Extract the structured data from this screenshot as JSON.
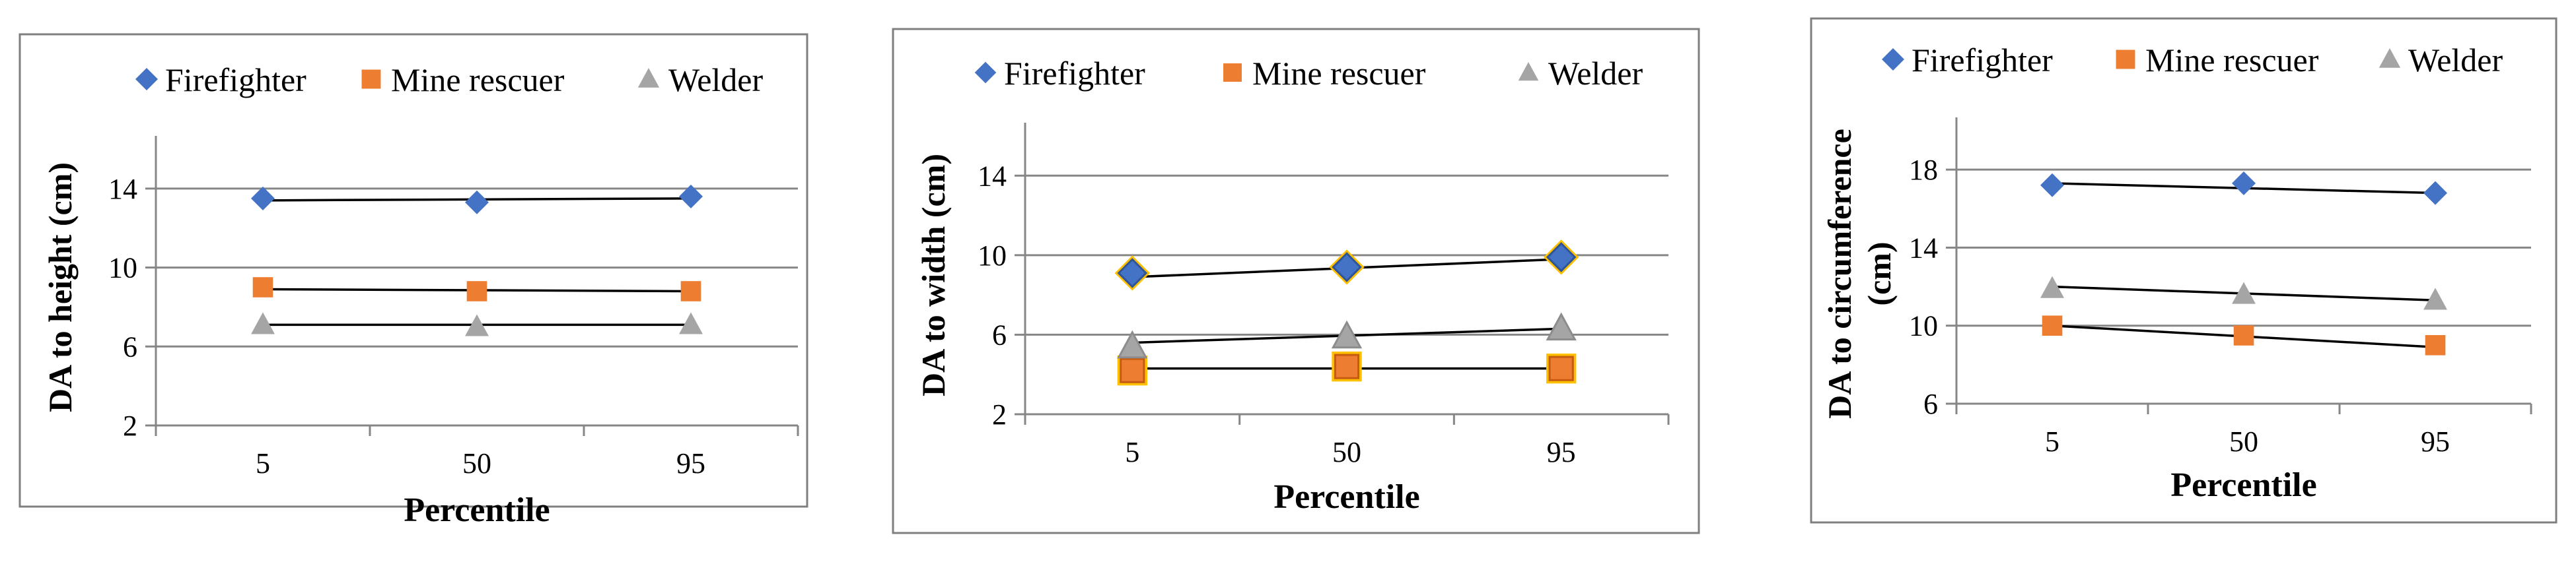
{
  "colors": {
    "firefighter": "#4472C4",
    "mine_rescuer": "#ED7D31",
    "welder": "#A5A5A5",
    "frame": "#7F7F7F",
    "grid": "#868686",
    "trend": "#000000",
    "halo": "#FFC000"
  },
  "icons": [
    "diamond-marker",
    "square-marker",
    "triangle-marker"
  ],
  "chart_data": [
    {
      "type": "scatter",
      "title": "",
      "xlabel": "Percentile",
      "ylabel": "DA to height (cm)",
      "categories": [
        "5",
        "50",
        "95"
      ],
      "yticks": [
        "2",
        "6",
        "10",
        "14"
      ],
      "ylim": [
        2,
        16
      ],
      "grid": true,
      "legend_position": "top",
      "series": [
        {
          "name": "Firefighter",
          "marker": "diamond",
          "values": [
            13.5,
            13.3,
            13.6
          ],
          "trend": [
            13.4,
            13.5
          ]
        },
        {
          "name": "Mine rescuer",
          "marker": "square",
          "values": [
            9.0,
            8.8,
            8.8
          ],
          "trend": [
            8.9,
            8.8
          ]
        },
        {
          "name": "Welder",
          "marker": "triangle",
          "values": [
            7.1,
            7.0,
            7.1
          ],
          "trend": [
            7.1,
            7.1
          ]
        }
      ]
    },
    {
      "type": "scatter",
      "title": "",
      "xlabel": "Percentile",
      "ylabel": "DA to width (cm)",
      "categories": [
        "5",
        "50",
        "95"
      ],
      "yticks": [
        "2",
        "6",
        "10",
        "14"
      ],
      "ylim": [
        2,
        16
      ],
      "grid": true,
      "legend_position": "top",
      "series": [
        {
          "name": "Firefighter",
          "marker": "diamond",
          "values": [
            9.1,
            9.4,
            9.9
          ],
          "trend": [
            8.9,
            9.8
          ]
        },
        {
          "name": "Mine rescuer",
          "marker": "square",
          "values": [
            4.2,
            4.4,
            4.3
          ],
          "trend": [
            4.3,
            4.3
          ]
        },
        {
          "name": "Welder",
          "marker": "triangle",
          "values": [
            5.4,
            5.9,
            6.3
          ],
          "trend": [
            5.6,
            6.3
          ]
        }
      ]
    },
    {
      "type": "scatter",
      "title": "",
      "xlabel": "Percentile",
      "ylabel": "DA to circumference (cm)",
      "categories": [
        "5",
        "50",
        "95"
      ],
      "yticks": [
        "6",
        "10",
        "14",
        "18"
      ],
      "ylim": [
        6,
        20
      ],
      "grid": true,
      "legend_position": "top",
      "series": [
        {
          "name": "Firefighter",
          "marker": "diamond",
          "values": [
            17.2,
            17.3,
            16.8
          ],
          "trend": [
            17.3,
            16.8
          ]
        },
        {
          "name": "Mine rescuer",
          "marker": "square",
          "values": [
            10.0,
            9.5,
            9.0
          ],
          "trend": [
            10.0,
            8.9
          ]
        },
        {
          "name": "Welder",
          "marker": "triangle",
          "values": [
            11.9,
            11.6,
            11.3
          ],
          "trend": [
            12.0,
            11.3
          ]
        }
      ]
    }
  ]
}
